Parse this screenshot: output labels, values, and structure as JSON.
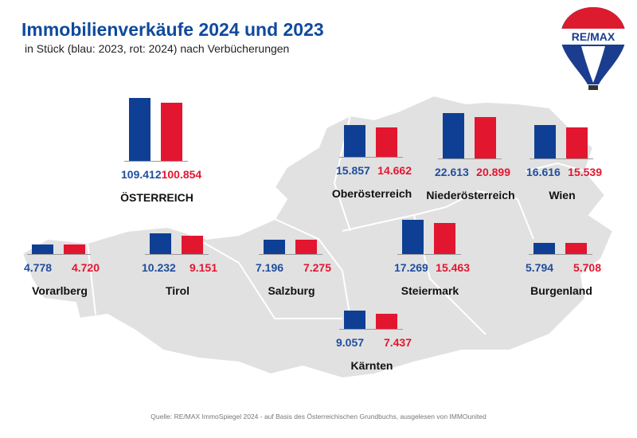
{
  "chart_data": {
    "type": "bar",
    "title": "Immobilienverkäufe 2024 und 2023",
    "subtitle": "in Stück  (blau: 2023, rot: 2024) nach Verbücherungen",
    "series": [
      {
        "name": "2023",
        "color": "#0f3f94"
      },
      {
        "name": "2024",
        "color": "#e3162f"
      }
    ],
    "groups": [
      {
        "name": "ÖSTERREICH",
        "v2023": 109412,
        "v2024": 100854,
        "l2023": "109.412",
        "l2024": "100.854"
      },
      {
        "name": "Oberösterreich",
        "v2023": 15857,
        "v2024": 14662,
        "l2023": "15.857",
        "l2024": "14.662"
      },
      {
        "name": "Niederösterreich",
        "v2023": 22613,
        "v2024": 20899,
        "l2023": "22.613",
        "l2024": "20.899"
      },
      {
        "name": "Wien",
        "v2023": 16616,
        "v2024": 15539,
        "l2023": "16.616",
        "l2024": "15.539"
      },
      {
        "name": "Vorarlberg",
        "v2023": 4778,
        "v2024": 4720,
        "l2023": "4.778",
        "l2024": "4.720"
      },
      {
        "name": "Tirol",
        "v2023": 10232,
        "v2024": 9151,
        "l2023": "10.232",
        "l2024": "9.151"
      },
      {
        "name": "Salzburg",
        "v2023": 7196,
        "v2024": 7275,
        "l2023": "7.196",
        "l2024": "7.275"
      },
      {
        "name": "Steiermark",
        "v2023": 17269,
        "v2024": 15463,
        "l2023": "17.269",
        "l2024": "15.463"
      },
      {
        "name": "Burgenland",
        "v2023": 5794,
        "v2024": 5708,
        "l2023": "5.794",
        "l2024": "5.708"
      },
      {
        "name": "Kärnten",
        "v2023": 9057,
        "v2024": 7437,
        "l2023": "9.057",
        "l2024": "7.437"
      }
    ]
  },
  "source": "Quelle: RE/MAX ImmoSpiegel 2024 - auf Basis des Österreichischen Grundbuchs, ausgelesen von IMMOunited",
  "logo": "RE/MAX"
}
